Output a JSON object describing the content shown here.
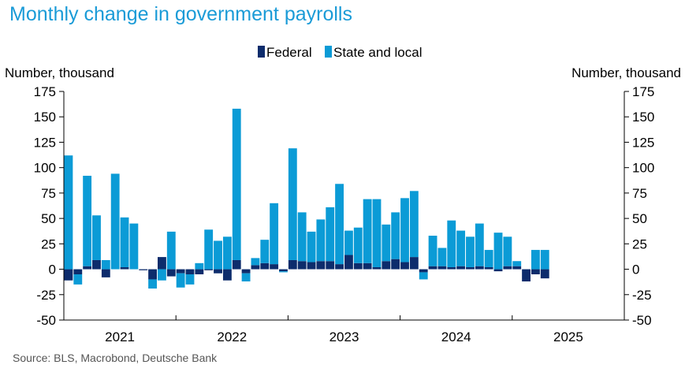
{
  "title": "Monthly change in government payrolls",
  "source": "Source: BLS, Macrobond, Deutsche Bank",
  "colors": {
    "federal": "#0d2c6c",
    "state_local": "#0b9bd6",
    "title": "#1a9bd7"
  },
  "chart_data": {
    "type": "bar",
    "stacked": true,
    "ylabel_left": "Number, thousand",
    "ylabel_right": "Number, thousand",
    "ylim": [
      -50,
      175
    ],
    "yticks": [
      175,
      150,
      125,
      100,
      75,
      50,
      25,
      0,
      -25,
      -50
    ],
    "year_labels": [
      "2021",
      "2022",
      "2023",
      "2024",
      "2025"
    ],
    "legend_position": "top-center",
    "start_month": "2021-01",
    "x": [
      "2021-01",
      "2021-02",
      "2021-03",
      "2021-04",
      "2021-05",
      "2021-06",
      "2021-07",
      "2021-08",
      "2021-09",
      "2021-10",
      "2021-11",
      "2021-12",
      "2022-01",
      "2022-02",
      "2022-03",
      "2022-04",
      "2022-05",
      "2022-06",
      "2022-07",
      "2022-08",
      "2022-09",
      "2022-10",
      "2022-11",
      "2022-12",
      "2023-01",
      "2023-02",
      "2023-03",
      "2023-04",
      "2023-05",
      "2023-06",
      "2023-07",
      "2023-08",
      "2023-09",
      "2023-10",
      "2023-11",
      "2023-12",
      "2024-01",
      "2024-02",
      "2024-03",
      "2024-04",
      "2024-05",
      "2024-06",
      "2024-07",
      "2024-08",
      "2024-09",
      "2024-10",
      "2024-11",
      "2024-12",
      "2025-01",
      "2025-02",
      "2025-03",
      "2025-04",
      "2025-05",
      "2025-06",
      "2025-07",
      "2025-08",
      "2025-09",
      "2025-10",
      "2025-11",
      "2025-12"
    ],
    "series": [
      {
        "name": "Federal",
        "values": [
          -11,
          -5,
          3,
          9,
          -8,
          0,
          2,
          0,
          -1,
          -10,
          12,
          -7,
          -4,
          -5,
          -5,
          -1,
          -4,
          -11,
          9,
          -4,
          4,
          6,
          5,
          -2,
          9,
          8,
          7,
          8,
          8,
          5,
          14,
          6,
          6,
          2,
          8,
          10,
          7,
          12,
          -3,
          3,
          3,
          2,
          3,
          2,
          3,
          2,
          -2,
          3,
          3,
          -12,
          -5,
          -9,
          0,
          0,
          0,
          0,
          0,
          0,
          0,
          0
        ]
      },
      {
        "name": "State and local",
        "values": [
          112,
          -10,
          89,
          44,
          9,
          94,
          49,
          45,
          0,
          -9,
          -11,
          37,
          -14,
          -10,
          6,
          39,
          28,
          32,
          149,
          -8,
          7,
          23,
          60,
          -1,
          110,
          48,
          30,
          41,
          53,
          79,
          24,
          35,
          63,
          67,
          36,
          46,
          63,
          65,
          -7,
          30,
          18,
          46,
          35,
          30,
          42,
          17,
          36,
          29,
          5,
          0,
          19,
          19,
          0,
          0,
          0,
          0,
          0,
          0,
          0,
          0
        ]
      }
    ]
  }
}
